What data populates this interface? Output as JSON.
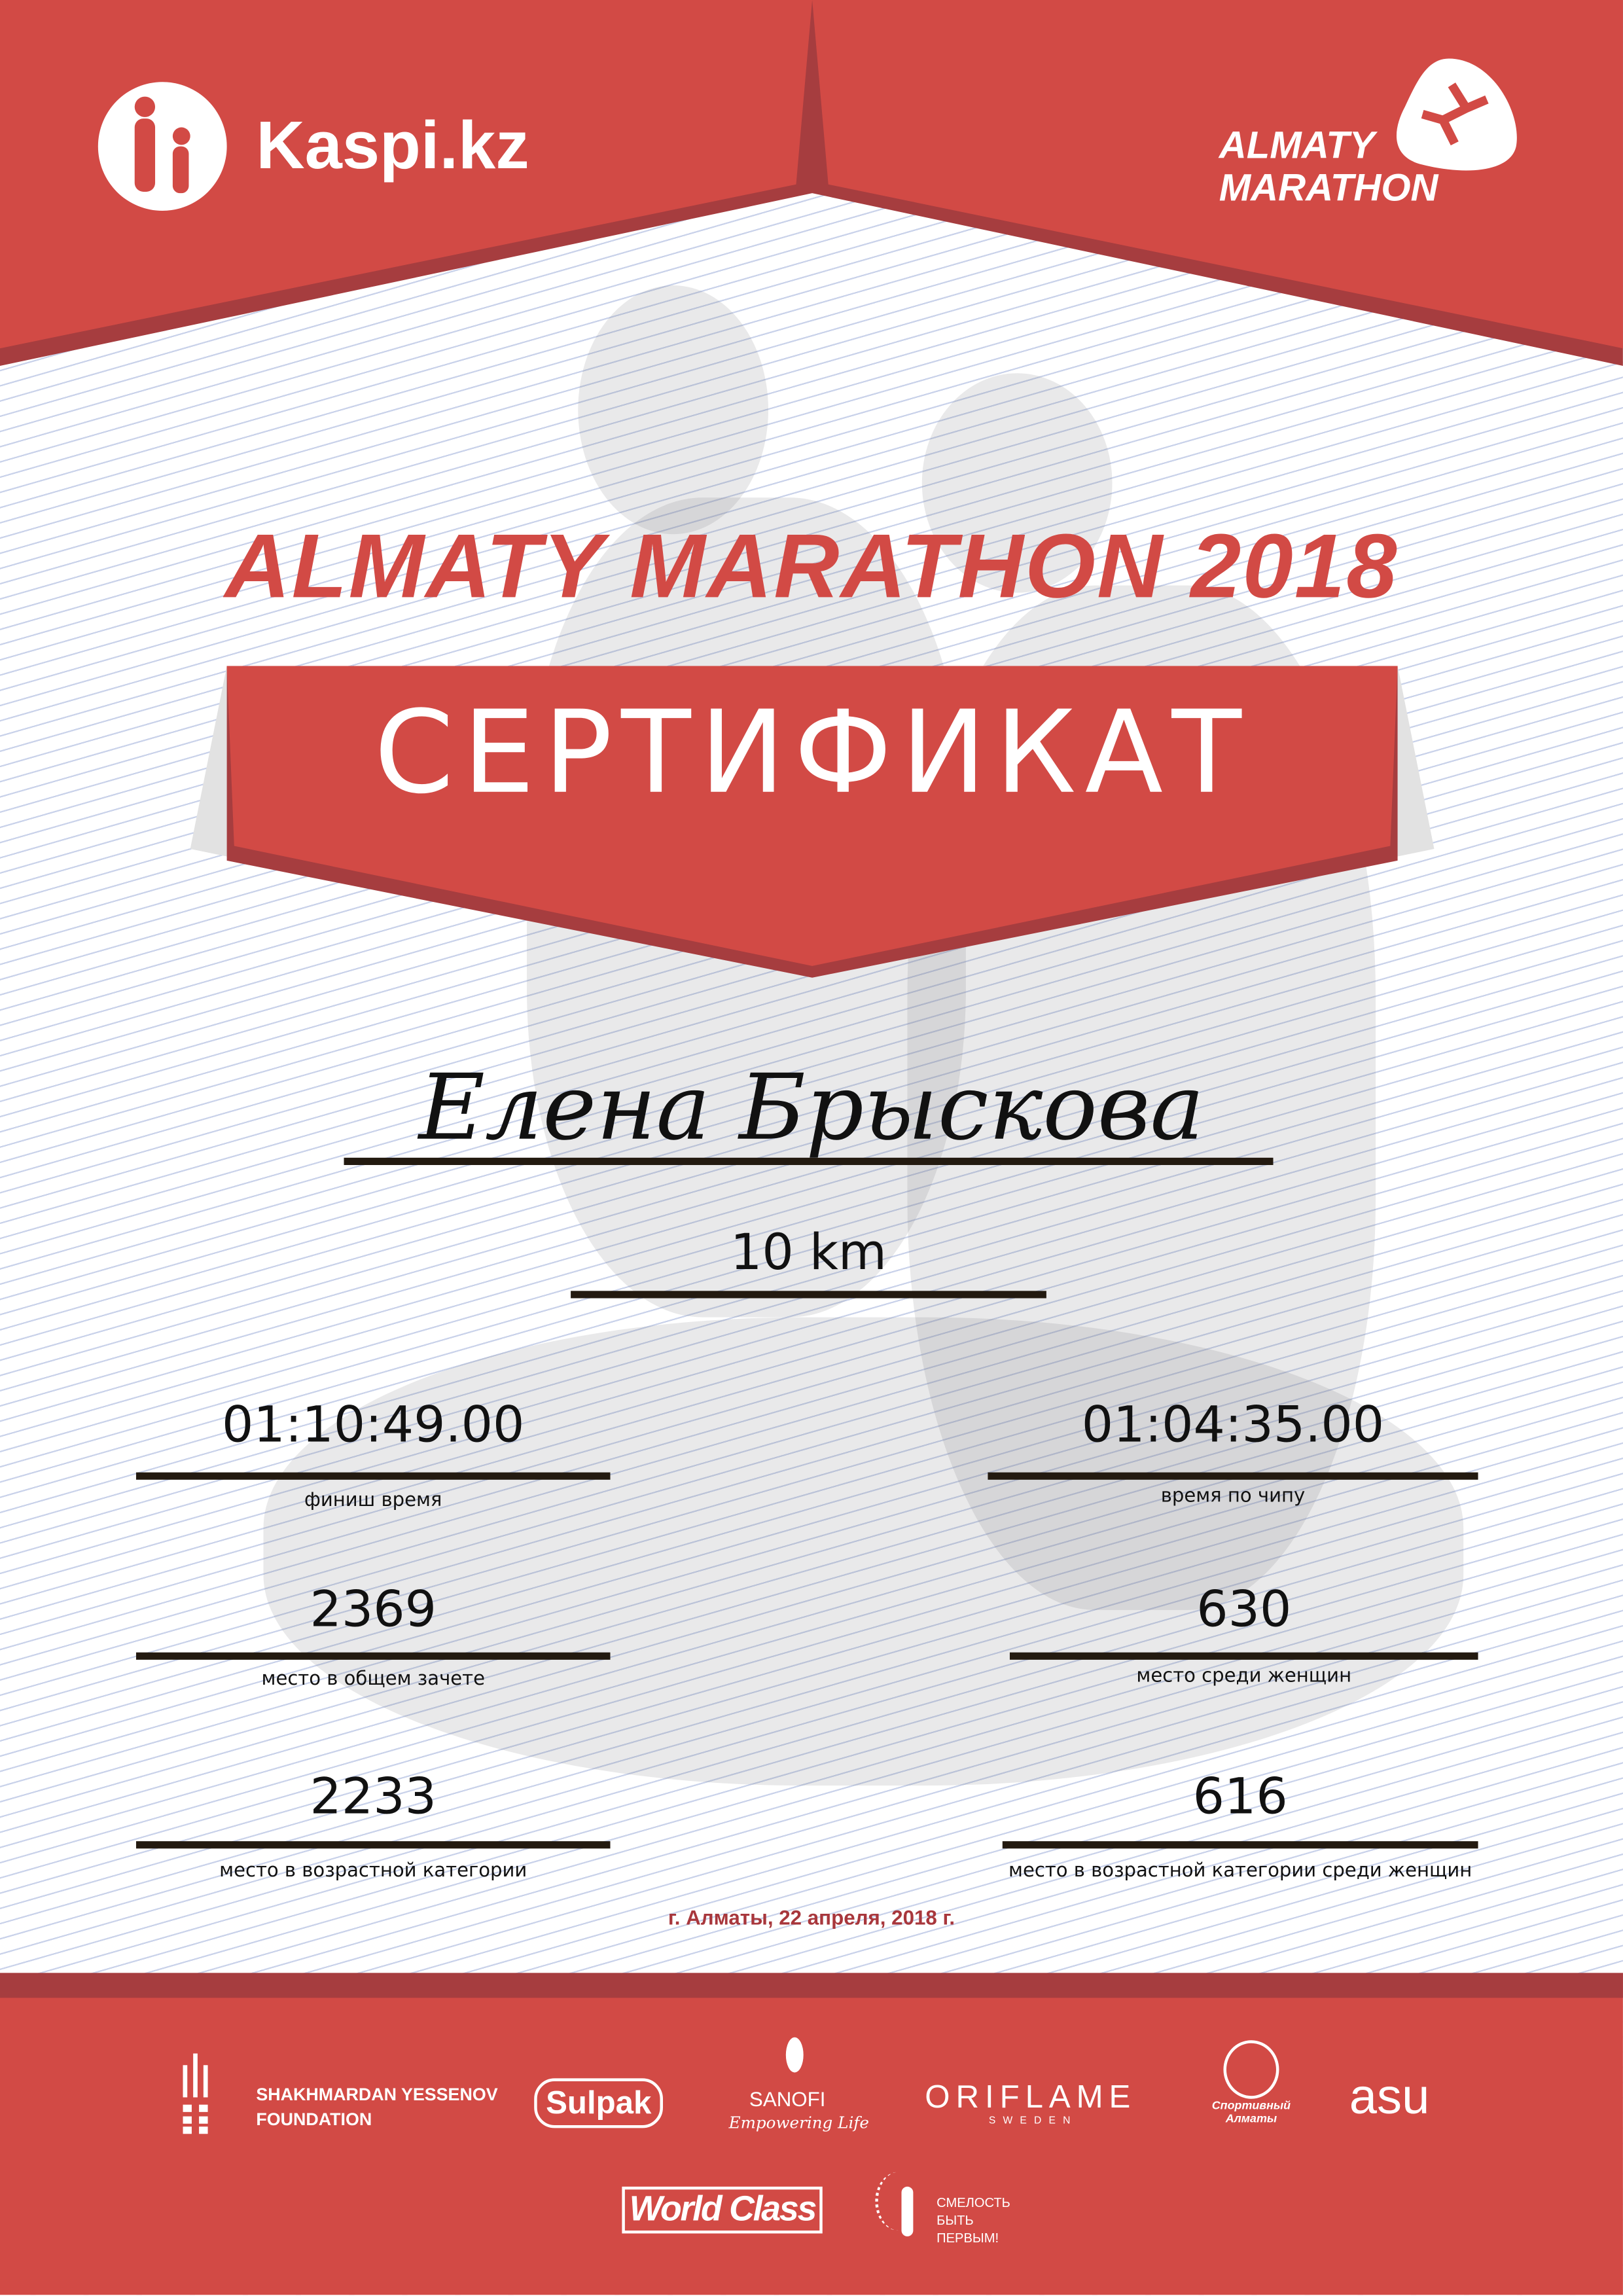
{
  "header": {
    "sponsor_logo": "Kaspi.kz",
    "event_logo_line1": "ALMATY",
    "event_logo_line2": "MARATHON"
  },
  "title": "ALMATY MARATHON 2018",
  "certificate_label": "СЕРТИФИКАТ",
  "participant": {
    "name": "Елена Брыскова",
    "distance": "10 km"
  },
  "results": {
    "finish_time": {
      "value": "01:10:49.00",
      "label": "финиш время"
    },
    "chip_time": {
      "value": "01:04:35.00",
      "label": "время по чипу"
    },
    "overall_place": {
      "value": "2369",
      "label": "место в общем зачете"
    },
    "women_place": {
      "value": "630",
      "label": "место среди женщин"
    },
    "age_place": {
      "value": "2233",
      "label": "место в возрастной категории"
    },
    "age_women_place": {
      "value": "616",
      "label": "место в возрастной категории среди женщин"
    }
  },
  "date_line": "г. Алматы, 22 апреля, 2018 г.",
  "sponsors": {
    "yessenov_line1": "SHAKHMARDAN YESSENOV",
    "yessenov_line2": "FOUNDATION",
    "sulpak": "Sulpak",
    "sanofi": "SANOFI",
    "sanofi_tagline": "Empowering Life",
    "oriflame": "ORIFLAME",
    "oriflame_sub": "SWEDEN",
    "sport_almaty": "Спортивный Алматы",
    "asu": "asu",
    "worldclass": "World Class",
    "courage_line1": "СМЕЛОСТЬ",
    "courage_line2": "БЫТЬ",
    "courage_line3": "ПЕРВЫМ!"
  },
  "colors": {
    "brand_red": "#d24a45",
    "dark_red": "#a63d3f",
    "date_red": "#a8373c"
  }
}
